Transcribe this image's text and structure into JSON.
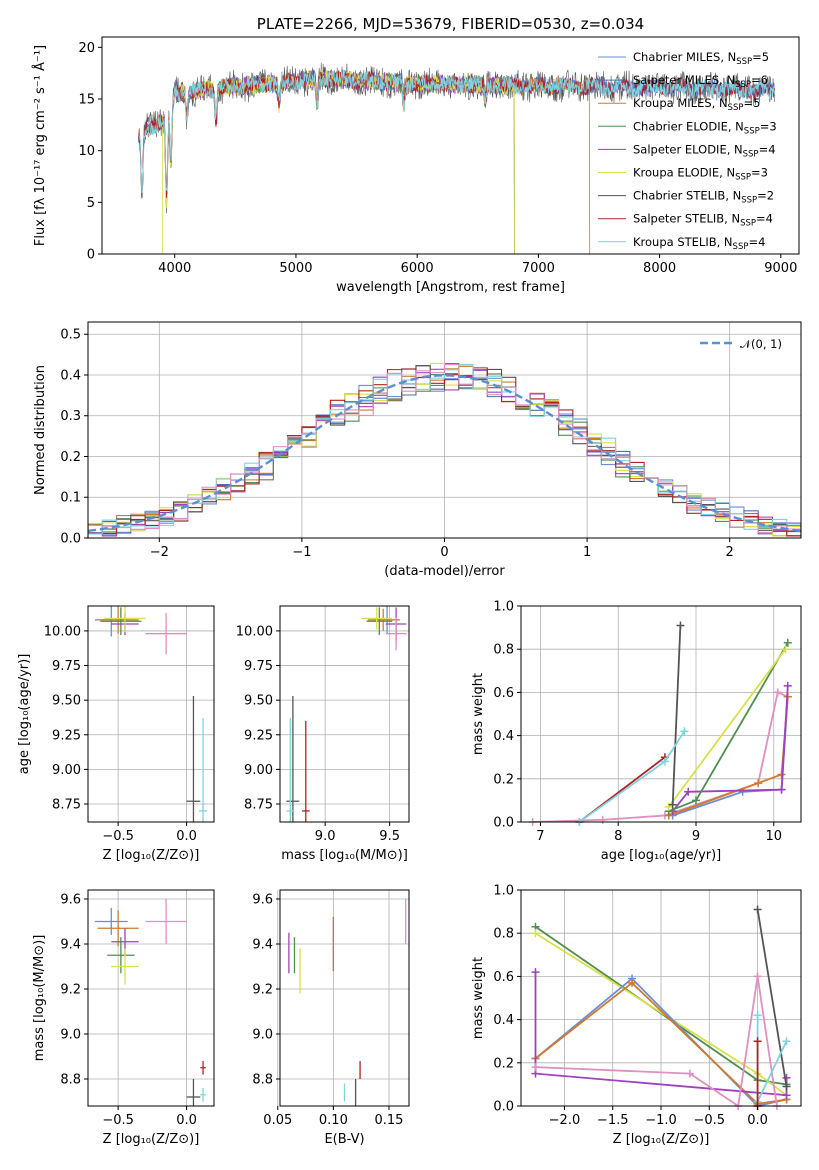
{
  "chart_data": [
    {
      "id": "spectrum",
      "type": "line",
      "title": "PLATE=2266, MJD=53679, FIBERID=0530, z=0.034",
      "xlabel": "wavelength [Angstrom, rest frame]",
      "ylabel": "Flux [fλ 10⁻¹⁷ erg cm⁻² s⁻¹ Å⁻¹]",
      "xlim": [
        3400,
        9150
      ],
      "ylim": [
        0,
        21
      ],
      "xticks": [
        4000,
        5000,
        6000,
        7000,
        8000,
        9000
      ],
      "yticks": [
        0,
        5,
        10,
        15,
        20
      ],
      "grid": false,
      "legend_position": "upper-right",
      "series": [
        {
          "name": "Chabrier MILES, N_SSP=5",
          "label": "Chabrier MILES, N",
          "sub": "SSP",
          "suffix": "=5",
          "color": "#6b8ed6",
          "range": [
            3700,
            8950
          ]
        },
        {
          "name": "Salpeter MILES, N_SSP=6",
          "label": "Salpeter MILES, N",
          "sub": "SSP",
          "suffix": "=6",
          "color": "#4a6fb3",
          "range": [
            3700,
            8950
          ]
        },
        {
          "name": "Kroupa MILES, N_SSP=5",
          "label": "Kroupa MILES, N",
          "sub": "SSP",
          "suffix": "=5",
          "color": "#d07a2e",
          "range": [
            3700,
            7420
          ]
        },
        {
          "name": "Chabrier ELODIE, N_SSP=3",
          "label": "Chabrier ELODIE, N",
          "sub": "SSP",
          "suffix": "=3",
          "color": "#4f8f4f",
          "range": [
            3900,
            6800
          ]
        },
        {
          "name": "Salpeter ELODIE, N_SSP=4",
          "label": "Salpeter ELODIE, N",
          "sub": "SSP",
          "suffix": "=4",
          "color": "#a040c0",
          "range": [
            3900,
            6800
          ]
        },
        {
          "name": "Kroupa ELODIE, N_SSP=3",
          "label": "Kroupa ELODIE, N",
          "sub": "SSP",
          "suffix": "=3",
          "color": "#d8e04a",
          "range": [
            3900,
            6800
          ]
        },
        {
          "name": "Chabrier STELIB, N_SSP=2",
          "label": "Chabrier STELIB, N",
          "sub": "SSP",
          "suffix": "=2",
          "color": "#555555",
          "range": [
            3700,
            8950
          ]
        },
        {
          "name": "Salpeter STELIB, N_SSP=4",
          "label": "Salpeter STELIB, N",
          "sub": "SSP",
          "suffix": "=4",
          "color": "#b22222",
          "range": [
            3700,
            8950
          ]
        },
        {
          "name": "Kroupa STELIB, N_SSP=4",
          "label": "Kroupa STELIB, N",
          "sub": "SSP",
          "suffix": "=4",
          "color": "#7fd3e0",
          "range": [
            3700,
            8950
          ]
        }
      ],
      "continuum_anchors": [
        [
          3700,
          11.5
        ],
        [
          3900,
          13.0
        ],
        [
          4000,
          15.5
        ],
        [
          4300,
          16.0
        ],
        [
          4800,
          16.5
        ],
        [
          5200,
          17.0
        ],
        [
          6000,
          16.5
        ],
        [
          6800,
          16.3
        ],
        [
          7500,
          16.2
        ],
        [
          8500,
          16.0
        ],
        [
          8950,
          15.8
        ]
      ],
      "absorption_features": [
        [
          3730,
          6.0
        ],
        [
          3933,
          8.5
        ],
        [
          3968,
          6.0
        ],
        [
          4101,
          2.5
        ],
        [
          4340,
          3.0
        ],
        [
          4861,
          2.0
        ],
        [
          5175,
          2.5
        ],
        [
          5890,
          2.0
        ],
        [
          6563,
          1.5
        ]
      ]
    },
    {
      "id": "residuals",
      "type": "step",
      "xlabel": "(data-model)/error",
      "ylabel": "Normed distribution",
      "xlim": [
        -2.5,
        2.5
      ],
      "ylim": [
        0,
        0.53
      ],
      "xticks": [
        -2,
        -1,
        0,
        1,
        2
      ],
      "yticks": [
        0.0,
        0.1,
        0.2,
        0.3,
        0.4,
        0.5
      ],
      "grid": true,
      "legend_position": "upper-right",
      "reference_label": "𝒩(0, 1)",
      "reference_color": "#5b8fd4",
      "bin_width": 0.1,
      "series_colors": [
        "#6b8ed6",
        "#4a6fb3",
        "#d07a2e",
        "#4f8f4f",
        "#a040c0",
        "#d8e04a",
        "#555555",
        "#b22222",
        "#7fd3e0",
        "#e08fc0"
      ]
    },
    {
      "id": "age-vs-Z",
      "type": "errorbar",
      "xlabel": "Z [log₁₀(Z/Z⊙)]",
      "ylabel": "age  [log₁₀(age/yr)]",
      "xlim": [
        -0.72,
        0.2
      ],
      "ylim": [
        8.62,
        10.18
      ],
      "xticks": [
        -0.5,
        0.0
      ],
      "yticks": [
        8.75,
        9.0,
        9.25,
        9.5,
        9.75,
        10.0
      ],
      "grid": true,
      "points": [
        {
          "x": -0.55,
          "y": 10.08,
          "xerr": 0.12,
          "yerr": 0.12,
          "color": "#6b8ed6"
        },
        {
          "x": -0.5,
          "y": 10.08,
          "xerr": 0.15,
          "yerr": 0.1,
          "color": "#d07a2e"
        },
        {
          "x": -0.48,
          "y": 10.07,
          "xerr": 0.15,
          "yerr": 0.1,
          "color": "#4f8f4f"
        },
        {
          "x": -0.45,
          "y": 10.05,
          "xerr": 0.1,
          "yerr": 0.08,
          "color": "#a040c0"
        },
        {
          "x": -0.45,
          "y": 10.09,
          "xerr": 0.15,
          "yerr": 0.1,
          "color": "#d8e04a"
        },
        {
          "x": -0.15,
          "y": 9.98,
          "xerr": 0.15,
          "yerr": 0.15,
          "color": "#e08fc0"
        },
        {
          "x": 0.05,
          "y": 8.77,
          "xerr": 0.05,
          "yerr": 0.76,
          "color": "#555555"
        },
        {
          "x": 0.12,
          "y": 8.7,
          "xerr": 0.03,
          "yerr": 0.67,
          "color": "#7fd3e0"
        }
      ]
    },
    {
      "id": "age-vs-mass",
      "type": "errorbar",
      "xlabel": "mass [log₁₀(M/M⊙)]",
      "ylabel": "",
      "xlim": [
        8.65,
        9.65
      ],
      "ylim": [
        8.62,
        10.18
      ],
      "xticks": [
        9.0,
        9.5
      ],
      "yticks": [
        8.75,
        9.0,
        9.25,
        9.5,
        9.75,
        10.0
      ],
      "grid": true,
      "points": [
        {
          "x": 9.48,
          "y": 10.08,
          "xerr": 0.1,
          "yerr": 0.1,
          "color": "#6b8ed6"
        },
        {
          "x": 9.45,
          "y": 10.08,
          "xerr": 0.12,
          "yerr": 0.08,
          "color": "#d07a2e"
        },
        {
          "x": 9.42,
          "y": 10.07,
          "xerr": 0.1,
          "yerr": 0.1,
          "color": "#4f8f4f"
        },
        {
          "x": 9.55,
          "y": 10.05,
          "xerr": 0.08,
          "yerr": 0.12,
          "color": "#a040c0"
        },
        {
          "x": 9.4,
          "y": 10.09,
          "xerr": 0.12,
          "yerr": 0.08,
          "color": "#d8e04a"
        },
        {
          "x": 9.55,
          "y": 9.98,
          "xerr": 0.08,
          "yerr": 0.12,
          "color": "#e08fc0"
        },
        {
          "x": 8.75,
          "y": 8.77,
          "xerr": 0.05,
          "yerr": 0.76,
          "color": "#555555"
        },
        {
          "x": 8.85,
          "y": 8.7,
          "xerr": 0.03,
          "yerr": 0.65,
          "color": "#b22222"
        },
        {
          "x": 8.73,
          "y": 8.7,
          "xerr": 0.03,
          "yerr": 0.67,
          "color": "#7fd3e0"
        }
      ]
    },
    {
      "id": "weight-vs-age",
      "type": "line",
      "xlabel": "age  [log₁₀(age/yr)]",
      "ylabel": "mass weight",
      "xlim": [
        6.75,
        10.35
      ],
      "ylim": [
        0,
        1
      ],
      "xticks": [
        7,
        8,
        9,
        10
      ],
      "yticks": [
        0.0,
        0.2,
        0.4,
        0.6,
        0.8,
        1.0
      ],
      "grid": true,
      "series": [
        {
          "color": "#e08fc0",
          "points": [
            [
              6.9,
              0.0
            ],
            [
              7.8,
              0.01
            ],
            [
              8.6,
              0.03
            ],
            [
              9.8,
              0.18
            ],
            [
              10.05,
              0.6
            ],
            [
              10.18,
              0.58
            ]
          ]
        },
        {
          "color": "#6b8ed6",
          "points": [
            [
              8.7,
              0.03
            ],
            [
              9.6,
              0.14
            ],
            [
              10.1,
              0.15
            ],
            [
              10.18,
              0.58
            ]
          ]
        },
        {
          "color": "#d07a2e",
          "points": [
            [
              8.65,
              0.03
            ],
            [
              9.8,
              0.18
            ],
            [
              10.1,
              0.22
            ],
            [
              10.18,
              0.58
            ]
          ]
        },
        {
          "color": "#a040c0",
          "points": [
            [
              8.7,
              0.05
            ],
            [
              8.9,
              0.14
            ],
            [
              10.1,
              0.15
            ],
            [
              10.18,
              0.63
            ]
          ]
        },
        {
          "color": "#4f8f4f",
          "points": [
            [
              8.65,
              0.05
            ],
            [
              9.0,
              0.1
            ],
            [
              10.18,
              0.83
            ]
          ]
        },
        {
          "color": "#d8e04a",
          "points": [
            [
              8.65,
              0.07
            ],
            [
              10.15,
              0.8
            ]
          ]
        },
        {
          "color": "#555555",
          "points": [
            [
              8.7,
              0.08
            ],
            [
              8.8,
              0.91
            ]
          ]
        },
        {
          "color": "#b22222",
          "points": [
            [
              7.5,
              0.0
            ],
            [
              8.6,
              0.3
            ]
          ]
        },
        {
          "color": "#7fd3e0",
          "points": [
            [
              7.5,
              0.0
            ],
            [
              8.6,
              0.28
            ],
            [
              8.85,
              0.42
            ]
          ]
        }
      ]
    },
    {
      "id": "mass-vs-Z",
      "type": "errorbar",
      "xlabel": "Z [log₁₀(Z/Z⊙)]",
      "ylabel": "mass [log₁₀(M/M⊙)]",
      "xlim": [
        -0.72,
        0.2
      ],
      "ylim": [
        8.68,
        9.64
      ],
      "xticks": [
        -0.5,
        0.0
      ],
      "yticks": [
        8.8,
        9.0,
        9.2,
        9.4,
        9.6
      ],
      "grid": true,
      "points": [
        {
          "x": -0.55,
          "y": 9.5,
          "xerr": 0.12,
          "yerr": 0.06,
          "color": "#6b8ed6"
        },
        {
          "x": -0.5,
          "y": 9.47,
          "xerr": 0.15,
          "yerr": 0.08,
          "color": "#d07a2e"
        },
        {
          "x": -0.48,
          "y": 9.35,
          "xerr": 0.1,
          "yerr": 0.08,
          "color": "#4f8f4f"
        },
        {
          "x": -0.45,
          "y": 9.41,
          "xerr": 0.1,
          "yerr": 0.06,
          "color": "#a040c0"
        },
        {
          "x": -0.45,
          "y": 9.3,
          "xerr": 0.1,
          "yerr": 0.08,
          "color": "#d8e04a"
        },
        {
          "x": -0.15,
          "y": 9.5,
          "xerr": 0.15,
          "yerr": 0.1,
          "color": "#e08fc0"
        },
        {
          "x": 0.05,
          "y": 8.72,
          "xerr": 0.05,
          "yerr": 0.08,
          "color": "#555555"
        },
        {
          "x": 0.12,
          "y": 8.85,
          "xerr": 0.02,
          "yerr": 0.03,
          "color": "#b22222"
        },
        {
          "x": 0.12,
          "y": 8.73,
          "xerr": 0.02,
          "yerr": 0.03,
          "color": "#7fd3e0"
        }
      ]
    },
    {
      "id": "mass-vs-ebv",
      "type": "errorbar",
      "xlabel": "E(B-V)",
      "ylabel": "",
      "xlim": [
        0.052,
        0.168
      ],
      "ylim": [
        8.68,
        9.64
      ],
      "xticks": [
        0.05,
        0.1,
        0.15
      ],
      "yticks": [
        8.8,
        9.0,
        9.2,
        9.4,
        9.6
      ],
      "grid": true,
      "points": [
        {
          "x": 0.1,
          "y": 9.4,
          "xerr": 0.0,
          "yerr": 0.12,
          "color": "#6b8ed6"
        },
        {
          "x": 0.1,
          "y": 9.4,
          "xerr": 0.0,
          "yerr": 0.12,
          "color": "#d07a2e"
        },
        {
          "x": 0.065,
          "y": 9.35,
          "xerr": 0.0,
          "yerr": 0.08,
          "color": "#4f8f4f"
        },
        {
          "x": 0.06,
          "y": 9.36,
          "xerr": 0.0,
          "yerr": 0.09,
          "color": "#a040c0"
        },
        {
          "x": 0.07,
          "y": 9.28,
          "xerr": 0.0,
          "yerr": 0.1,
          "color": "#d8e04a"
        },
        {
          "x": 0.165,
          "y": 9.5,
          "xerr": 0.0,
          "yerr": 0.1,
          "color": "#e08fc0"
        },
        {
          "x": 0.12,
          "y": 8.74,
          "xerr": 0.0,
          "yerr": 0.06,
          "color": "#555555"
        },
        {
          "x": 0.124,
          "y": 8.84,
          "xerr": 0.0,
          "yerr": 0.04,
          "color": "#b22222"
        },
        {
          "x": 0.11,
          "y": 8.74,
          "xerr": 0.0,
          "yerr": 0.04,
          "color": "#7fd3e0"
        }
      ]
    },
    {
      "id": "weight-vs-Z",
      "type": "line",
      "xlabel": "Z [log₁₀(Z/Z⊙)]",
      "ylabel": "mass weight",
      "xlim": [
        -2.45,
        0.45
      ],
      "ylim": [
        0,
        1
      ],
      "xticks": [
        -2.0,
        -1.5,
        -1.0,
        -0.5,
        0.0
      ],
      "yticks": [
        0.0,
        0.2,
        0.4,
        0.6,
        0.8,
        1.0
      ],
      "grid": true,
      "series": [
        {
          "color": "#4f8f4f",
          "points": [
            [
              -2.3,
              0.83
            ],
            [
              0.0,
              0.12
            ],
            [
              0.3,
              0.1
            ]
          ]
        },
        {
          "color": "#d8e04a",
          "points": [
            [
              -2.3,
              0.8
            ],
            [
              0.0,
              0.15
            ],
            [
              0.3,
              0.05
            ]
          ]
        },
        {
          "color": "#6b8ed6",
          "points": [
            [
              -2.3,
              0.22
            ],
            [
              -1.3,
              0.59
            ],
            [
              0.0,
              0.0
            ],
            [
              0.3,
              0.03
            ]
          ]
        },
        {
          "color": "#d07a2e",
          "points": [
            [
              -2.3,
              0.22
            ],
            [
              -1.3,
              0.57
            ],
            [
              0.0,
              0.01
            ],
            [
              0.3,
              0.03
            ]
          ]
        },
        {
          "color": "#a040c0",
          "points": [
            [
              -2.3,
              0.62
            ],
            [
              -2.3,
              0.15
            ],
            [
              0.3,
              0.05
            ],
            [
              0.3,
              0.13
            ]
          ]
        },
        {
          "color": "#e08fc0",
          "points": [
            [
              -2.3,
              0.18
            ],
            [
              -0.7,
              0.15
            ],
            [
              -0.2,
              0.0
            ],
            [
              0.0,
              0.6
            ],
            [
              0.2,
              0.0
            ]
          ]
        },
        {
          "color": "#555555",
          "points": [
            [
              0.0,
              0.91
            ],
            [
              0.3,
              0.09
            ]
          ]
        },
        {
          "color": "#7fd3e0",
          "points": [
            [
              0.0,
              0.42
            ],
            [
              0.0,
              0.02
            ],
            [
              0.3,
              0.3
            ]
          ]
        },
        {
          "color": "#b22222",
          "points": [
            [
              0.0,
              0.0
            ],
            [
              0.0,
              0.3
            ]
          ]
        }
      ]
    }
  ]
}
